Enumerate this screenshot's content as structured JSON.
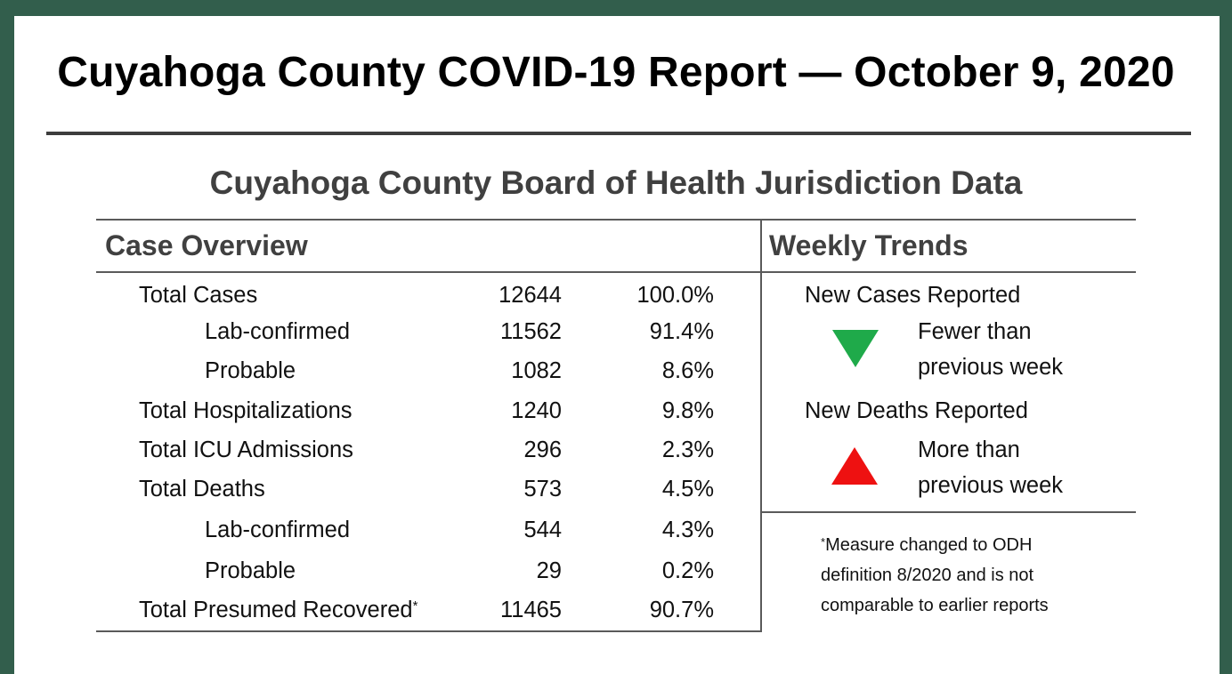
{
  "report": {
    "title": "Cuyahoga County COVID-19 Report — October 9, 2020",
    "subtitle": "Cuyahoga County Board of Health Jurisdiction Data"
  },
  "case_overview": {
    "heading": "Case Overview",
    "rows": [
      {
        "label": "Total Cases",
        "count": "12644",
        "percent": "100.0%"
      },
      {
        "label": "Lab-confirmed",
        "count": "11562",
        "percent": "91.4%"
      },
      {
        "label": "Probable",
        "count": "1082",
        "percent": "8.6%"
      },
      {
        "label": "Total Hospitalizations",
        "count": "1240",
        "percent": "9.8%"
      },
      {
        "label": "Total ICU Admissions",
        "count": "296",
        "percent": "2.3%"
      },
      {
        "label": "Total Deaths",
        "count": "573",
        "percent": "4.5%"
      },
      {
        "label": "Lab-confirmed",
        "count": "544",
        "percent": "4.3%"
      },
      {
        "label": "Probable",
        "count": "29",
        "percent": "0.2%"
      },
      {
        "label": "Total Presumed Recovered",
        "label_marker": "*",
        "count": "11465",
        "percent": "90.7%"
      }
    ]
  },
  "weekly_trends": {
    "heading": "Weekly Trends",
    "items": [
      {
        "label": "New Cases Reported",
        "direction": "down",
        "icon": "triangle-down-icon",
        "color": "#1faa4a",
        "status_line1": "Fewer than",
        "status_line2": "previous week"
      },
      {
        "label": "New Deaths Reported",
        "direction": "up",
        "icon": "triangle-up-icon",
        "color": "#ee1111",
        "status_line1": "More than",
        "status_line2": "previous week"
      }
    ],
    "note": {
      "marker": "*",
      "line1": "Measure changed to ODH",
      "line2": "definition 8/2020 and is not",
      "line3": "comparable to earlier reports"
    }
  },
  "colors": {
    "frame": "#325e4c",
    "rules": "#5a5a5a",
    "heading_text": "#404040"
  }
}
